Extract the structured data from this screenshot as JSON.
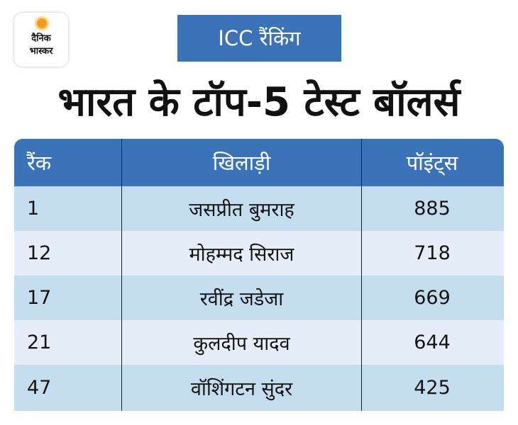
{
  "brand": {
    "line1": "दैनिक",
    "line2": "भास्कर"
  },
  "badge": "ICC रैंकिंग",
  "headline": "भारत के टॉप-5 टेस्ट बॉलर्स",
  "colors": {
    "header_blue": "#3b73b9",
    "row_blue": "#c4def0",
    "row_light": "#e5eef8",
    "logo_orange": "#f59a1b"
  },
  "chart_data": {
    "type": "table",
    "columns": [
      "रैंक",
      "खिलाड़ी",
      "पॉइंट्स"
    ],
    "rows": [
      {
        "rank": "1",
        "player": "जसप्रीत बुमराह",
        "points": "885"
      },
      {
        "rank": "12",
        "player": "मोहम्मद सिराज",
        "points": "718"
      },
      {
        "rank": "17",
        "player": "रवींद्र जडेजा",
        "points": "669"
      },
      {
        "rank": "21",
        "player": "कुलदीप यादव",
        "points": "644"
      },
      {
        "rank": "47",
        "player": "वॉशिंगटन सुंदर",
        "points": "425"
      }
    ]
  }
}
